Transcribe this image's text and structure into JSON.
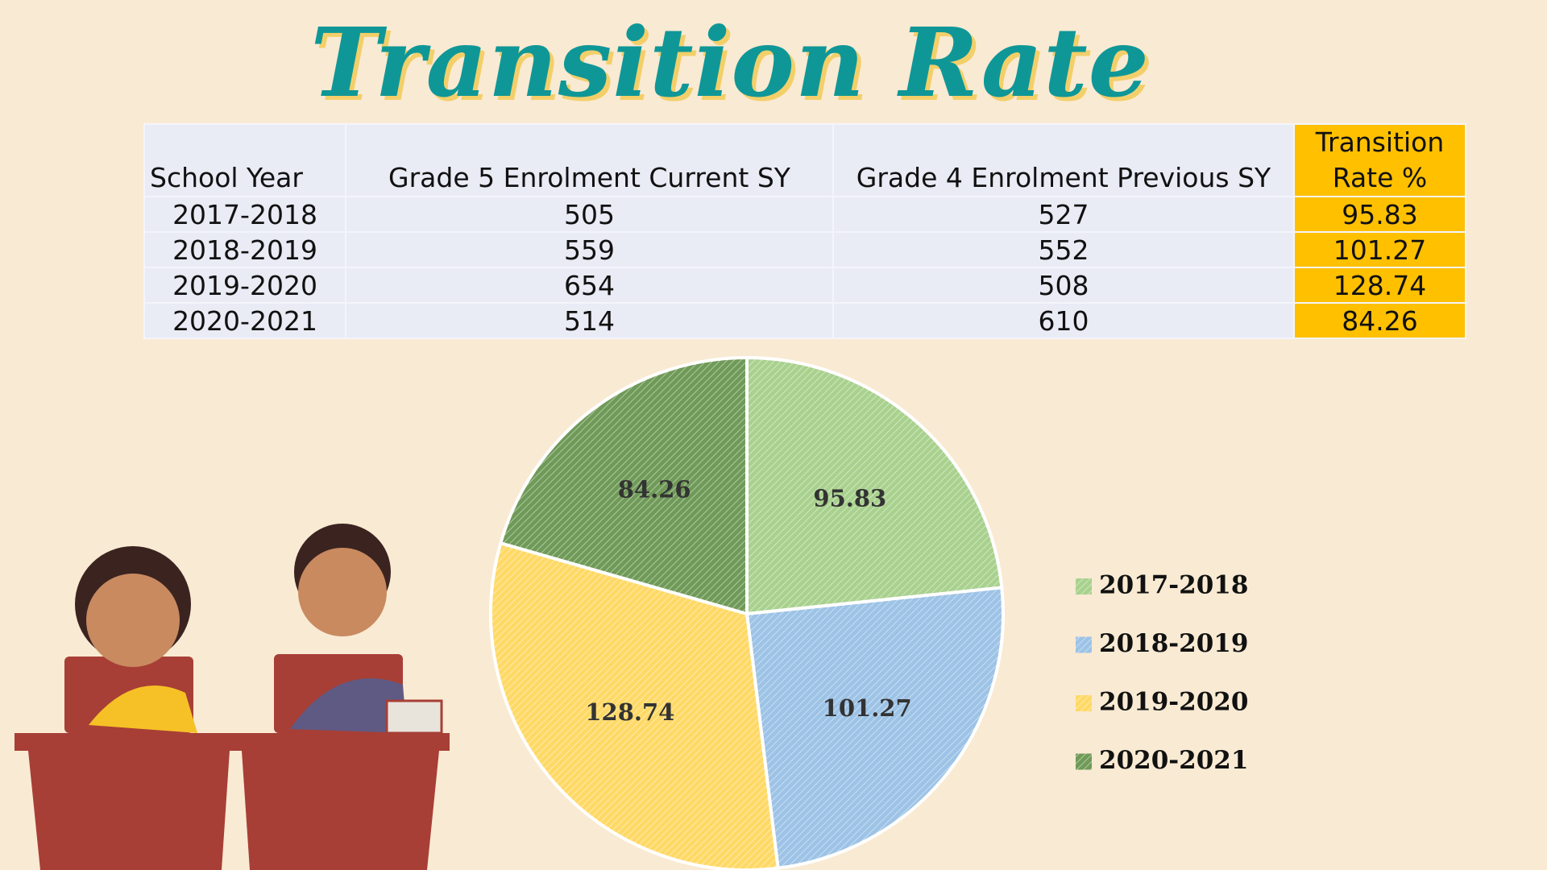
{
  "title": "Transition Rate",
  "table": {
    "header": [
      "School Year",
      "Grade 5 Enrolment Current SY",
      "Grade 4 Enrolment Previous SY",
      "Transition Rate %"
    ],
    "rows": [
      [
        "2017-2018",
        505,
        527,
        95.83
      ],
      [
        "2018-2019",
        559,
        552,
        101.27
      ],
      [
        "2019-2020",
        654,
        508,
        128.74
      ],
      [
        "2020-2021",
        514,
        610,
        84.26
      ]
    ]
  },
  "chart_data": {
    "type": "pie",
    "categories": [
      "2017-2018",
      "2018-2019",
      "2019-2020",
      "2020-2021"
    ],
    "values": [
      95.83,
      101.27,
      128.74,
      84.26
    ],
    "colors": [
      "#a9d18e",
      "#9dc3e6",
      "#ffd966",
      "#6f9a58"
    ],
    "legend": "right"
  }
}
